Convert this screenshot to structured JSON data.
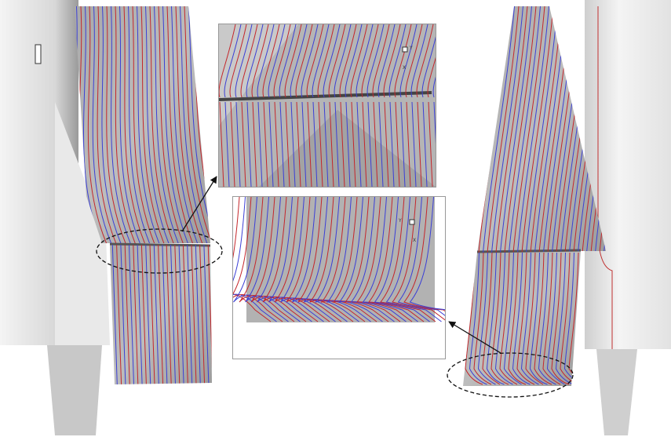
{
  "insets": [
    {
      "axis_labels": [
        "Y",
        "X"
      ]
    },
    {
      "axis_labels": [
        "Y",
        "X"
      ]
    }
  ]
}
